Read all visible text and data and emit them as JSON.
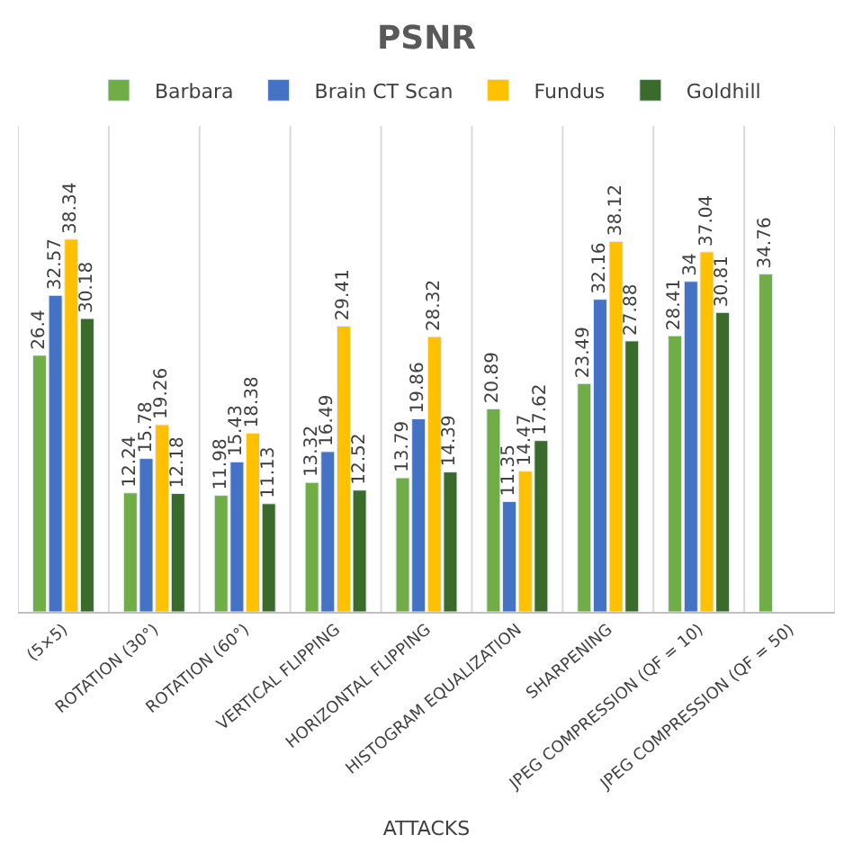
{
  "chart_data": {
    "type": "bar",
    "title": "PSNR",
    "xlabel": "ATTACKS",
    "categories": [
      "(5×5)",
      "ROTATION (30°)",
      "ROTATION (60°)",
      "VERTICAL FLIPPING",
      "HORIZONTAL FLIPPING",
      "HISTOGRAM EQUALIZATION",
      "SHARPENING",
      "JPEG COMPRESSION (QF = 10)",
      "JPEG COMPRESSION (QF = 50)"
    ],
    "series": [
      {
        "name": "Barbara",
        "color": "#70ad47",
        "values": [
          26.4,
          12.24,
          11.98,
          13.32,
          13.79,
          20.89,
          23.49,
          28.41,
          34.76
        ]
      },
      {
        "name": "Brain CT Scan",
        "color": "#4472c4",
        "values": [
          32.57,
          15.78,
          15.43,
          16.49,
          19.86,
          11.35,
          32.16,
          34,
          null
        ]
      },
      {
        "name": "Fundus",
        "color": "#ffc000",
        "values": [
          38.34,
          19.26,
          18.38,
          29.41,
          28.32,
          14.47,
          38.12,
          37.04,
          null
        ]
      },
      {
        "name": "Goldhill",
        "color": "#3b6b2a",
        "values": [
          30.18,
          12.18,
          11.13,
          12.52,
          14.39,
          17.62,
          27.88,
          30.81,
          null
        ]
      }
    ],
    "ylim": [
      0,
      50
    ],
    "data_labels": true,
    "grid": "x",
    "legend": "top"
  }
}
